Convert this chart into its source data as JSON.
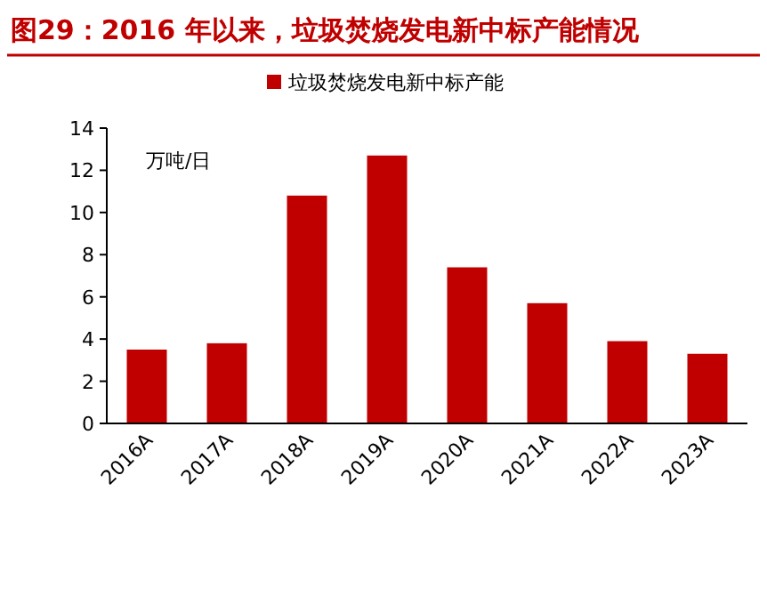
{
  "chart_data": {
    "type": "bar",
    "title": "图29：2016 年以来，垃圾焚烧发电新中标产能情况",
    "ylabel": "万吨/日",
    "categories": [
      "2016A",
      "2017A",
      "2018A",
      "2019A",
      "2020A",
      "2021A",
      "2022A",
      "2023A"
    ],
    "series": [
      {
        "name": "垃圾焚烧发电新中标产能",
        "color": "#c00000",
        "values": [
          3.5,
          3.8,
          10.8,
          12.7,
          7.4,
          5.7,
          3.9,
          3.3
        ]
      }
    ],
    "ylim": [
      0,
      14
    ],
    "yticks": [
      0,
      2,
      4,
      6,
      8,
      10,
      12,
      14
    ],
    "grid": false,
    "legend": "top"
  }
}
